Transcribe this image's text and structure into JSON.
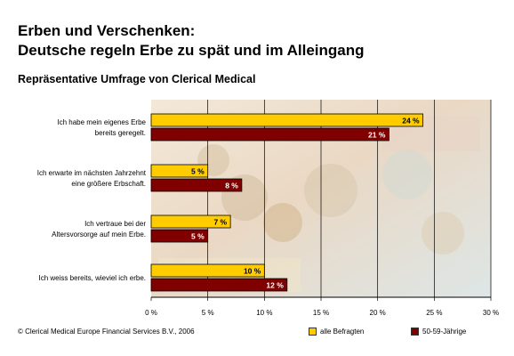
{
  "title_line1": "Erben und Verschenken:",
  "title_line2": "Deutsche regeln Erbe zu spät und im Alleingang",
  "subtitle": "Repräsentative Umfrage von Clerical Medical",
  "footer": "© Clerical Medical Europe Financial Services B.V., 2006",
  "colors": {
    "series1": "#ffcc00",
    "series2": "#800000",
    "label1": "#ffcc00",
    "label2": "#ffffff"
  },
  "chart_data": {
    "type": "bar",
    "orientation": "horizontal",
    "categories": [
      [
        "Ich habe mein eigenes Erbe",
        "bereits geregelt."
      ],
      [
        "Ich erwarte im nächsten Jahrzehnt",
        "eine größere Erbschaft."
      ],
      [
        "Ich vertraue bei der",
        "Altersvorsorge auf mein Erbe."
      ],
      [
        "Ich weiss bereits, wieviel ich erbe."
      ]
    ],
    "series": [
      {
        "name": "alle Befragten",
        "values": [
          24,
          5,
          7,
          10
        ],
        "labels": [
          "24 %",
          "5 %",
          "7 %",
          "10 %"
        ]
      },
      {
        "name": "50-59-Jährige",
        "values": [
          21,
          8,
          5,
          12
        ],
        "labels": [
          "21 %",
          "8 %",
          "5 %",
          "12 %"
        ]
      }
    ],
    "xlim": [
      0,
      30
    ],
    "xticks": [
      "0 %",
      "5 %",
      "10 %",
      "15 %",
      "20 %",
      "25 %",
      "30 %"
    ],
    "grid": true,
    "legend_position": "bottom-right"
  }
}
